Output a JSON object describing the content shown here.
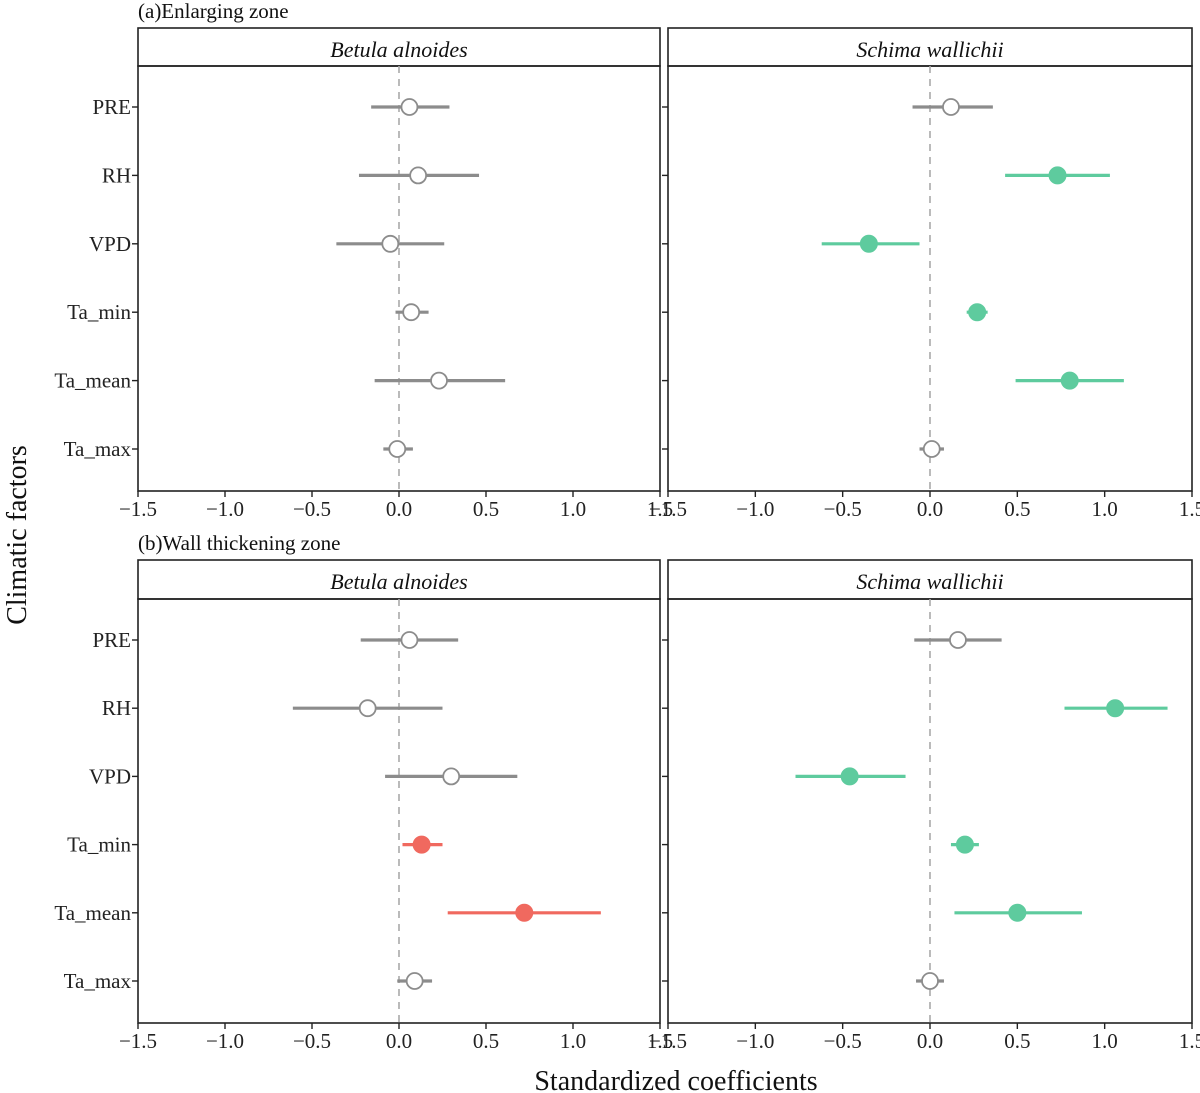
{
  "axis_titles": {
    "ylabel": "Climatic factors",
    "xlabel": "Standardized coefficients"
  },
  "colors": {
    "nonsignificant": "#8c8c8c",
    "positive_green": "#5ecb9e",
    "red": "#f0695f"
  },
  "chart_data": [
    {
      "type": "scatter",
      "subtype": "coefficient-plot",
      "section": "(a)Enlarging zone",
      "panel_title": "Betula alnoides",
      "categories": [
        "PRE",
        "RH",
        "VPD",
        "Ta_min",
        "Ta_mean",
        "Ta_max"
      ],
      "xlim": [
        -1.5,
        1.5
      ],
      "xticks": [
        "−1.5",
        "−1.0",
        "−0.5",
        "0.0",
        "0.5",
        "1.0",
        "1.5"
      ],
      "points": [
        {
          "factor": "PRE",
          "estimate": 0.06,
          "low": -0.16,
          "high": 0.29,
          "color": "#8c8c8c",
          "filled": false
        },
        {
          "factor": "RH",
          "estimate": 0.11,
          "low": -0.23,
          "high": 0.46,
          "color": "#8c8c8c",
          "filled": false
        },
        {
          "factor": "VPD",
          "estimate": -0.05,
          "low": -0.36,
          "high": 0.26,
          "color": "#8c8c8c",
          "filled": false
        },
        {
          "factor": "Ta_min",
          "estimate": 0.07,
          "low": -0.02,
          "high": 0.17,
          "color": "#8c8c8c",
          "filled": false
        },
        {
          "factor": "Ta_mean",
          "estimate": 0.23,
          "low": -0.14,
          "high": 0.61,
          "color": "#8c8c8c",
          "filled": false
        },
        {
          "factor": "Ta_max",
          "estimate": -0.01,
          "low": -0.09,
          "high": 0.08,
          "color": "#8c8c8c",
          "filled": false
        }
      ]
    },
    {
      "type": "scatter",
      "subtype": "coefficient-plot",
      "section": "(a)Enlarging zone",
      "panel_title": "Schima wallichii",
      "categories": [
        "PRE",
        "RH",
        "VPD",
        "Ta_min",
        "Ta_mean",
        "Ta_max"
      ],
      "xlim": [
        -1.5,
        1.5
      ],
      "xticks": [
        "−1.5",
        "−1.0",
        "−0.5",
        "0.0",
        "0.5",
        "1.0",
        "1.5"
      ],
      "points": [
        {
          "factor": "PRE",
          "estimate": 0.12,
          "low": -0.1,
          "high": 0.36,
          "color": "#8c8c8c",
          "filled": false
        },
        {
          "factor": "RH",
          "estimate": 0.73,
          "low": 0.43,
          "high": 1.03,
          "color": "#5ecb9e",
          "filled": true
        },
        {
          "factor": "VPD",
          "estimate": -0.35,
          "low": -0.62,
          "high": -0.06,
          "color": "#5ecb9e",
          "filled": true
        },
        {
          "factor": "Ta_min",
          "estimate": 0.27,
          "low": 0.21,
          "high": 0.33,
          "color": "#5ecb9e",
          "filled": true
        },
        {
          "factor": "Ta_mean",
          "estimate": 0.8,
          "low": 0.49,
          "high": 1.11,
          "color": "#5ecb9e",
          "filled": true
        },
        {
          "factor": "Ta_max",
          "estimate": 0.01,
          "low": -0.06,
          "high": 0.08,
          "color": "#8c8c8c",
          "filled": false
        }
      ]
    },
    {
      "type": "scatter",
      "subtype": "coefficient-plot",
      "section": "(b)Wall thickening zone",
      "panel_title": "Betula alnoides",
      "categories": [
        "PRE",
        "RH",
        "VPD",
        "Ta_min",
        "Ta_mean",
        "Ta_max"
      ],
      "xlim": [
        -1.5,
        1.5
      ],
      "xticks": [
        "−1.5",
        "−1.0",
        "−0.5",
        "0.0",
        "0.5",
        "1.0",
        "1.5"
      ],
      "points": [
        {
          "factor": "PRE",
          "estimate": 0.06,
          "low": -0.22,
          "high": 0.34,
          "color": "#8c8c8c",
          "filled": false
        },
        {
          "factor": "RH",
          "estimate": -0.18,
          "low": -0.61,
          "high": 0.25,
          "color": "#8c8c8c",
          "filled": false
        },
        {
          "factor": "VPD",
          "estimate": 0.3,
          "low": -0.08,
          "high": 0.68,
          "color": "#8c8c8c",
          "filled": false
        },
        {
          "factor": "Ta_min",
          "estimate": 0.13,
          "low": 0.02,
          "high": 0.25,
          "color": "#f0695f",
          "filled": true
        },
        {
          "factor": "Ta_mean",
          "estimate": 0.72,
          "low": 0.28,
          "high": 1.16,
          "color": "#f0695f",
          "filled": true
        },
        {
          "factor": "Ta_max",
          "estimate": 0.09,
          "low": -0.01,
          "high": 0.19,
          "color": "#8c8c8c",
          "filled": false
        }
      ]
    },
    {
      "type": "scatter",
      "subtype": "coefficient-plot",
      "section": "(b)Wall thickening zone",
      "panel_title": "Schima wallichii",
      "categories": [
        "PRE",
        "RH",
        "VPD",
        "Ta_min",
        "Ta_mean",
        "Ta_max"
      ],
      "xlim": [
        -1.5,
        1.5
      ],
      "xticks": [
        "−1.5",
        "−1.0",
        "−0.5",
        "0.0",
        "0.5",
        "1.0",
        "1.5"
      ],
      "points": [
        {
          "factor": "PRE",
          "estimate": 0.16,
          "low": -0.09,
          "high": 0.41,
          "color": "#8c8c8c",
          "filled": false
        },
        {
          "factor": "RH",
          "estimate": 1.06,
          "low": 0.77,
          "high": 1.36,
          "color": "#5ecb9e",
          "filled": true
        },
        {
          "factor": "VPD",
          "estimate": -0.46,
          "low": -0.77,
          "high": -0.14,
          "color": "#5ecb9e",
          "filled": true
        },
        {
          "factor": "Ta_min",
          "estimate": 0.2,
          "low": 0.12,
          "high": 0.28,
          "color": "#5ecb9e",
          "filled": true
        },
        {
          "factor": "Ta_mean",
          "estimate": 0.5,
          "low": 0.14,
          "high": 0.87,
          "color": "#5ecb9e",
          "filled": true
        },
        {
          "factor": "Ta_max",
          "estimate": 0.0,
          "low": -0.08,
          "high": 0.08,
          "color": "#8c8c8c",
          "filled": false
        }
      ]
    }
  ]
}
